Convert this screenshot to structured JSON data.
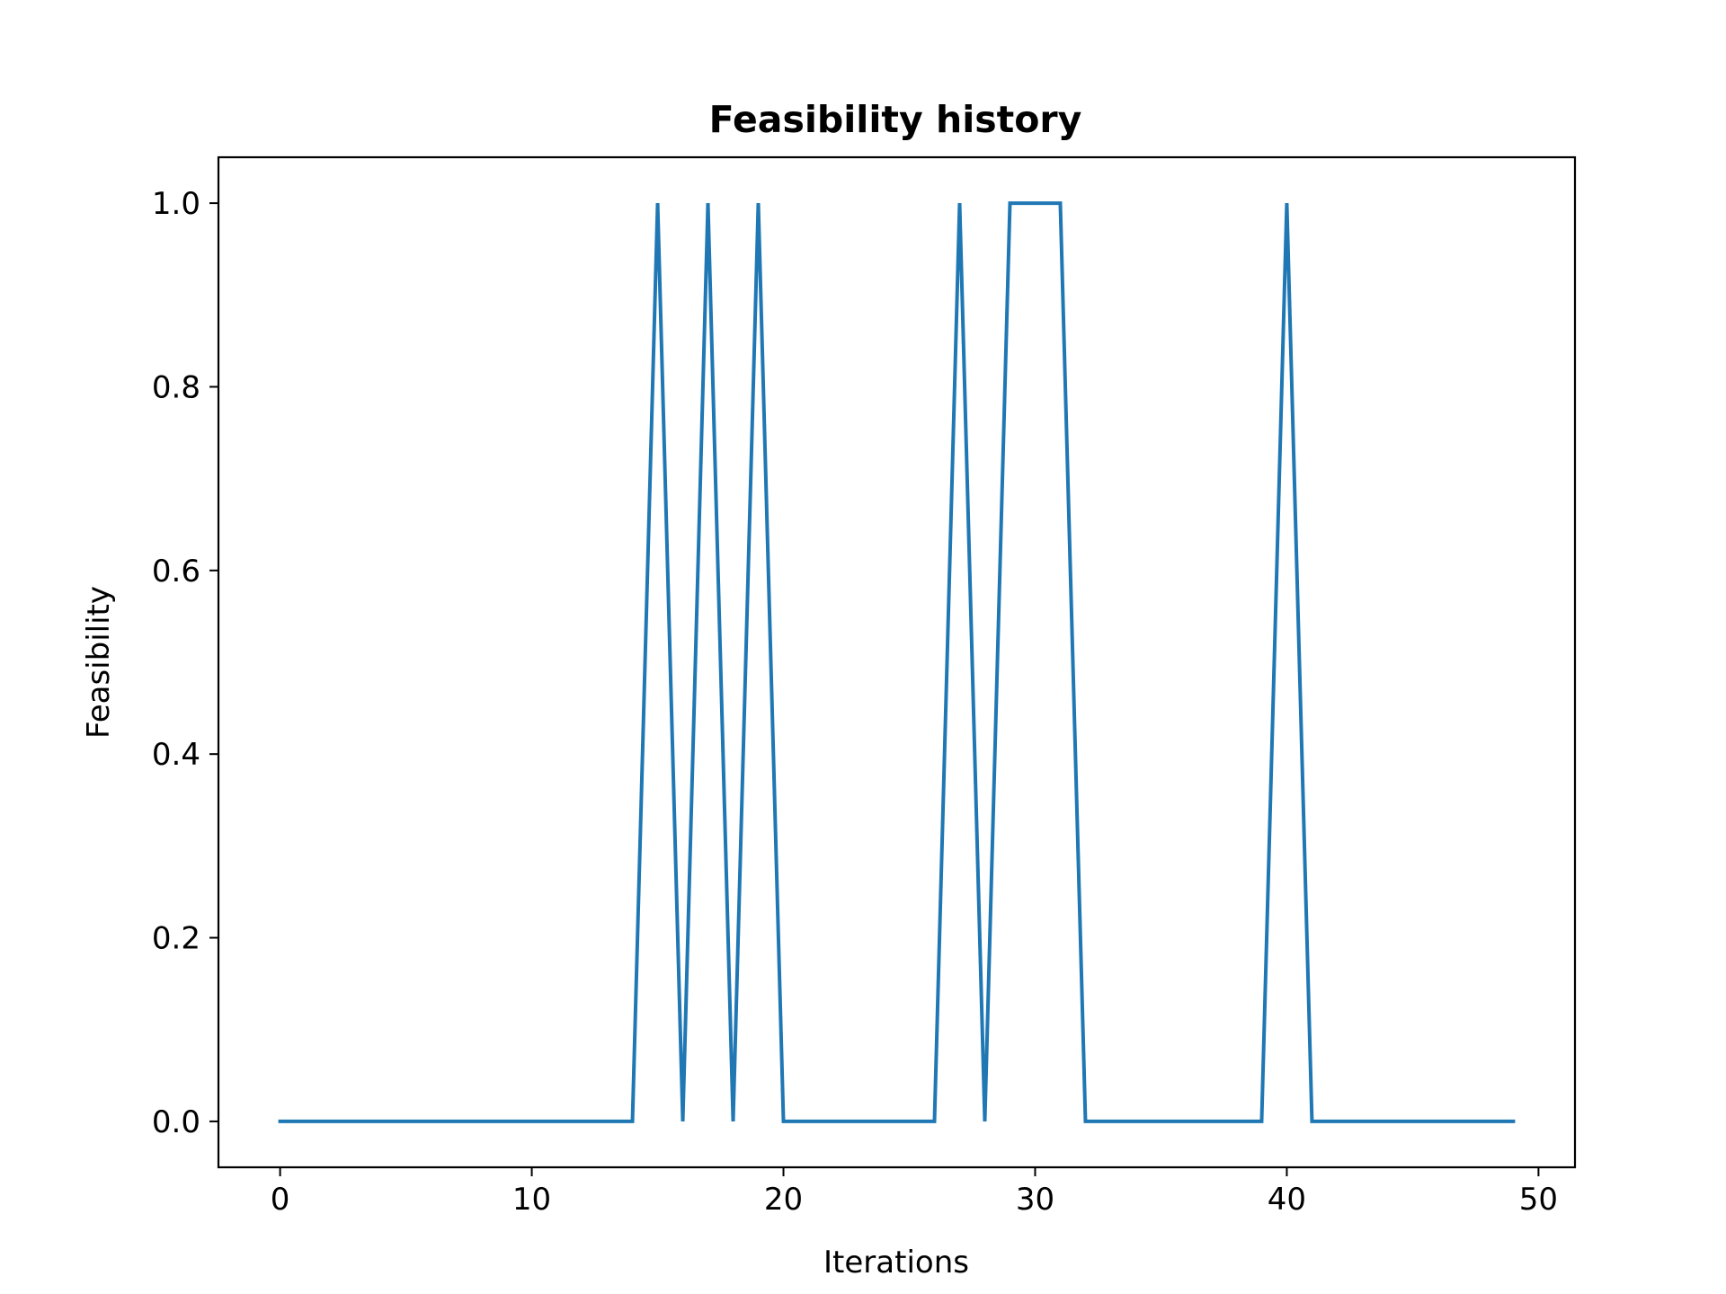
{
  "chart_data": {
    "type": "line",
    "title": "Feasibility history",
    "xlabel": "Iterations",
    "ylabel": "Feasibility",
    "xlim": [
      -2.45,
      51.45
    ],
    "ylim": [
      -0.05,
      1.05
    ],
    "xticks": [
      0,
      10,
      20,
      30,
      40,
      50
    ],
    "xtick_labels": [
      "0",
      "10",
      "20",
      "30",
      "40",
      "50"
    ],
    "yticks": [
      0.0,
      0.2,
      0.4,
      0.6,
      0.8,
      1.0
    ],
    "ytick_labels": [
      "0.0",
      "0.2",
      "0.4",
      "0.6",
      "0.8",
      "1.0"
    ],
    "grid": false,
    "line_color": "#1f77b4",
    "series": [
      {
        "x": [
          0,
          1,
          2,
          3,
          4,
          5,
          6,
          7,
          8,
          9,
          10,
          11,
          12,
          13,
          14,
          15,
          16,
          17,
          18,
          19,
          20,
          21,
          22,
          23,
          24,
          25,
          26,
          27,
          28,
          29,
          30,
          31,
          32,
          33,
          34,
          35,
          36,
          37,
          38,
          39,
          40,
          41,
          42,
          43,
          44,
          45,
          46,
          47,
          48,
          49
        ],
        "values": [
          0,
          0,
          0,
          0,
          0,
          0,
          0,
          0,
          0,
          0,
          0,
          0,
          0,
          0,
          0,
          1,
          0,
          1,
          0,
          1,
          0,
          0,
          0,
          0,
          0,
          0,
          0,
          1,
          0,
          1,
          1,
          1,
          0,
          0,
          0,
          0,
          0,
          0,
          0,
          0,
          1,
          0,
          0,
          0,
          0,
          0,
          0,
          0,
          0,
          0
        ]
      }
    ]
  }
}
